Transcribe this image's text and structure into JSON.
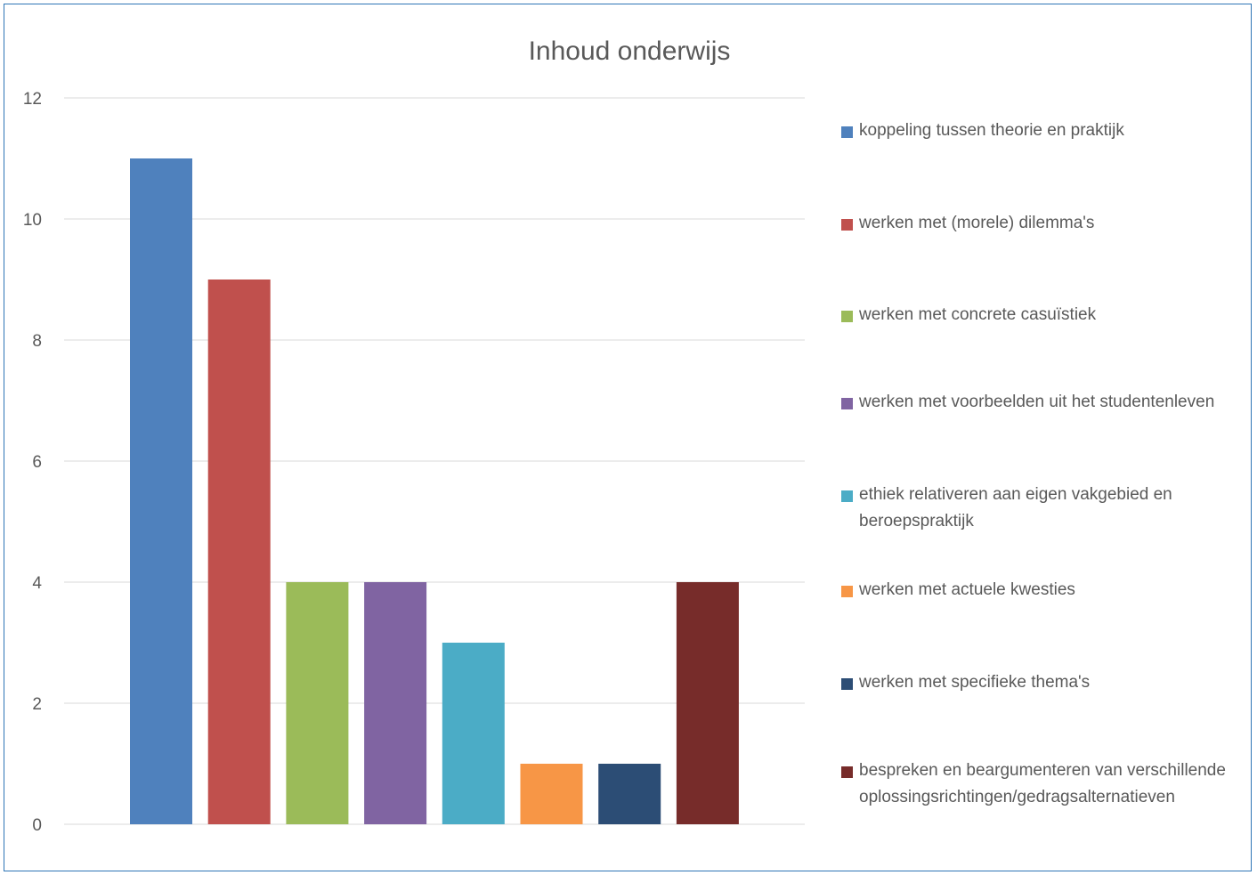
{
  "chart_data": {
    "type": "bar",
    "title": "Inhoud onderwijs",
    "xlabel": "",
    "ylabel": "",
    "ylim": [
      0,
      12
    ],
    "yticks": [
      0,
      2,
      4,
      6,
      8,
      10,
      12
    ],
    "grid": true,
    "legend_position": "right",
    "series": [
      {
        "name": "koppeling tussen theorie en praktijk",
        "value": 11,
        "color": "#4f81bd"
      },
      {
        "name": "werken met (morele) dilemma's",
        "value": 9,
        "color": "#c0504d"
      },
      {
        "name": "werken met concrete casuïstiek",
        "value": 4,
        "color": "#9bbb59"
      },
      {
        "name": "werken met voorbeelden uit het studentenleven",
        "value": 4,
        "color": "#8064a2"
      },
      {
        "name": "ethiek relativeren aan eigen vakgebied en beroepspraktijk",
        "value": 3,
        "color": "#4bacc6"
      },
      {
        "name": "werken met actuele kwesties",
        "value": 1,
        "color": "#f79646"
      },
      {
        "name": "werken met specifieke thema's",
        "value": 1,
        "color": "#2c4d75"
      },
      {
        "name": "bespreken en beargumenteren van verschillende oplossingsrichtingen/gedragsalternatieven",
        "value": 4,
        "color": "#772c2a"
      }
    ]
  }
}
